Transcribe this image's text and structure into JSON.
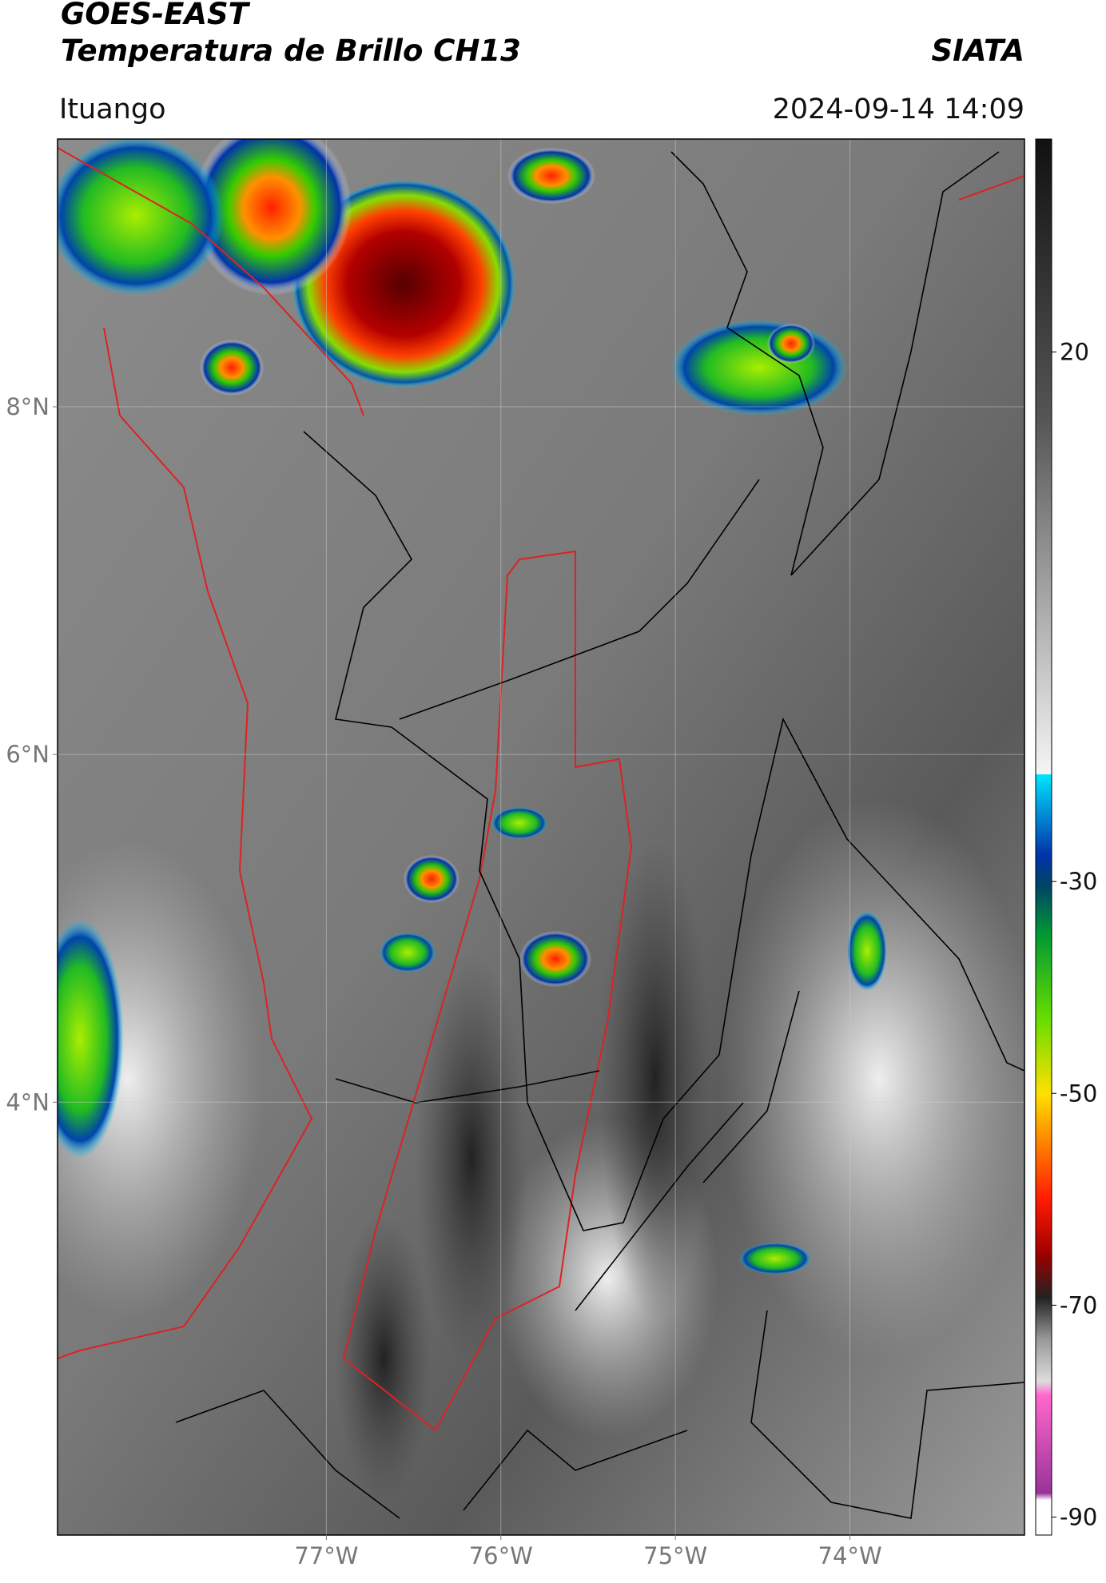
{
  "header": {
    "title": "GOES-EAST",
    "subtitle": "Temperatura de Brillo CH13",
    "source": "SIATA",
    "location": "Ituango",
    "timestamp": "2024-09-14 14:09"
  },
  "map": {
    "xlim": [
      -78.54,
      -73.0
    ],
    "ylim": [
      1.51,
      9.54
    ],
    "xticks": [
      {
        "value": -77,
        "label": "77°W"
      },
      {
        "value": -76,
        "label": "76°W"
      },
      {
        "value": -75,
        "label": "75°W"
      },
      {
        "value": -74,
        "label": "74°W"
      }
    ],
    "yticks": [
      {
        "value": 4,
        "label": "4°N"
      },
      {
        "value": 6,
        "label": "6°N"
      },
      {
        "value": 8,
        "label": "8°N"
      }
    ],
    "grid": true
  },
  "colorbar": {
    "lim": [
      -91.7,
      40.1
    ],
    "ticks": [
      20,
      -30,
      -50,
      -70,
      -90
    ]
  }
}
